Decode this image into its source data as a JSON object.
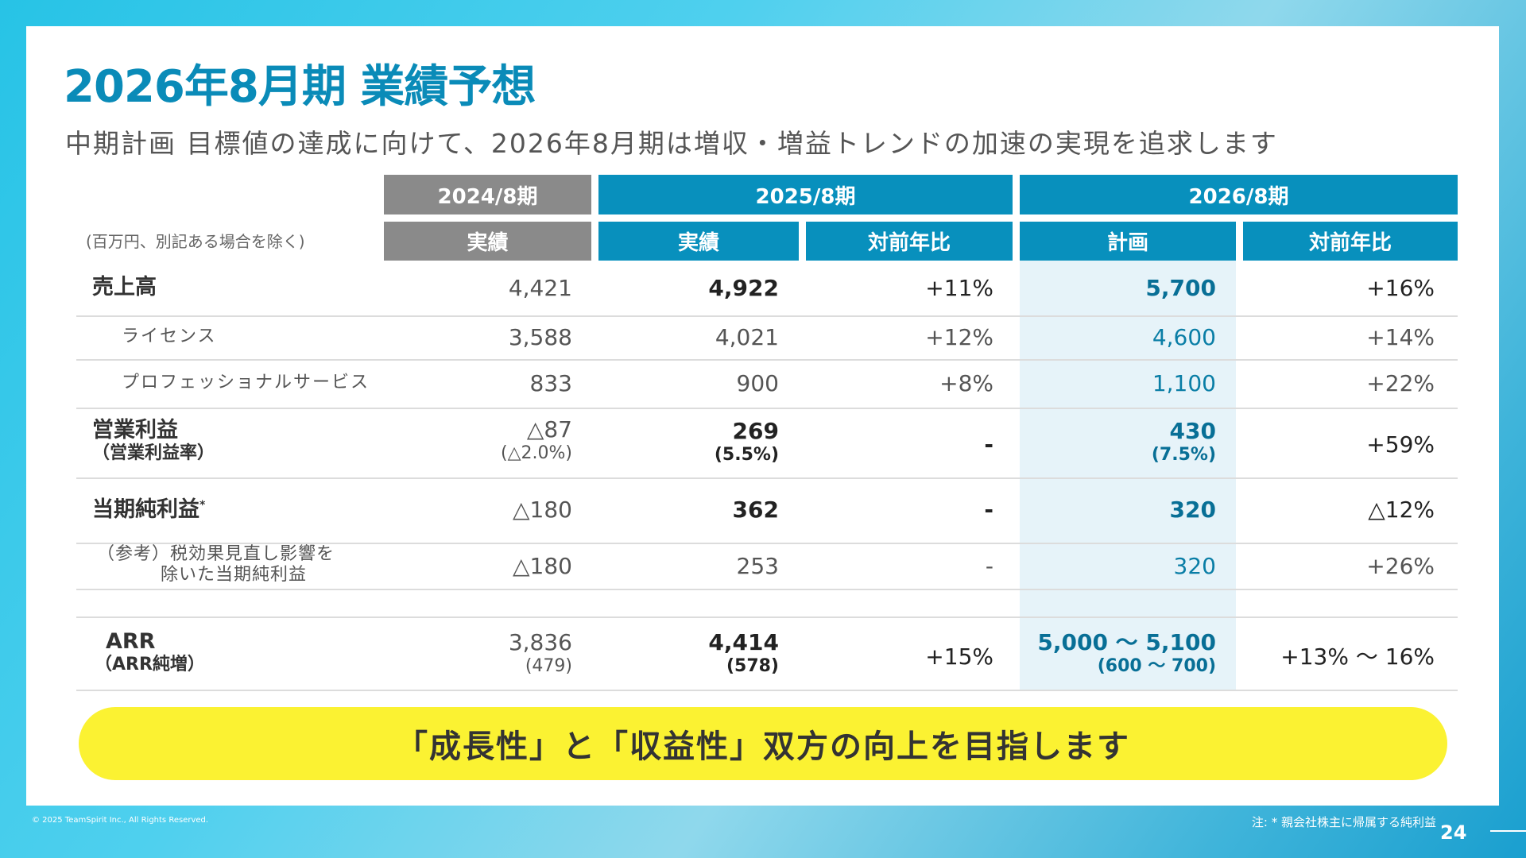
{
  "title": "2026年8月期 業績予想",
  "subtitle": "中期計画 目標値の達成に向けて、2026年8月期は増収・増益トレンドの加速の実現を追求します",
  "unit_note": "(百万円、別記ある場合を除く)",
  "headers": {
    "fy2024": "2024/8期",
    "fy2025": "2025/8期",
    "fy2026": "2026/8期",
    "actual_2024": "実績",
    "actual_2025": "実績",
    "yoy_2025": "対前年比",
    "plan_2026": "計画",
    "yoy_2026": "対前年比"
  },
  "rows": [
    {
      "label": "売上高",
      "fy2024": "4,421",
      "fy2025": "4,922",
      "yoy2025": "+11%",
      "plan2026": "5,700",
      "yoy2026": "+16%"
    },
    {
      "label": "ライセンス",
      "fy2024": "3,588",
      "fy2025": "4,021",
      "yoy2025": "+12%",
      "plan2026": "4,600",
      "yoy2026": "+14%"
    },
    {
      "label": "プロフェッショナルサービス",
      "fy2024": "833",
      "fy2025": "900",
      "yoy2025": "+8%",
      "plan2026": "1,100",
      "yoy2026": "+22%"
    },
    {
      "label": "営業利益",
      "label_sub": "（営業利益率）",
      "fy2024": "△87",
      "fy2024_sub": "(△2.0%)",
      "fy2025": "269",
      "fy2025_sub": "(5.5%)",
      "yoy2025": "-",
      "plan2026": "430",
      "plan2026_sub": "(7.5%)",
      "yoy2026": "+59%"
    },
    {
      "label": "当期純利益",
      "label_mark": "*",
      "fy2024": "△180",
      "fy2025": "362",
      "yoy2025": "-",
      "plan2026": "320",
      "yoy2026": "△12%"
    },
    {
      "label_line1": "（参考）税効果見直し影響を",
      "label_line2": "除いた当期純利益",
      "fy2024": "△180",
      "fy2025": "253",
      "yoy2025": "-",
      "plan2026": "320",
      "yoy2026": "+26%"
    },
    {
      "label": "ARR",
      "label_sub": "（ARR純増）",
      "fy2024": "3,836",
      "fy2024_sub": "(479)",
      "fy2025": "4,414",
      "fy2025_sub": "(578)",
      "yoy2025": "+15%",
      "plan2026": "5,000 〜 5,100",
      "plan2026_sub": "(600 〜 700)",
      "yoy2026": "+13% 〜 16%"
    }
  ],
  "banner": "「成長性」と「収益性」双方の向上を目指します",
  "footer": {
    "copyright": "© 2025 TeamSpirit Inc., All Rights Reserved.",
    "note": "注: * 親会社株主に帰属する純利益",
    "page": "24"
  },
  "colors": {
    "accent": "#0890bd",
    "title": "#0a8bb8",
    "header_gray": "#8a8a8a",
    "plan_highlight": "#e6f3f9",
    "banner": "#fbf232"
  }
}
